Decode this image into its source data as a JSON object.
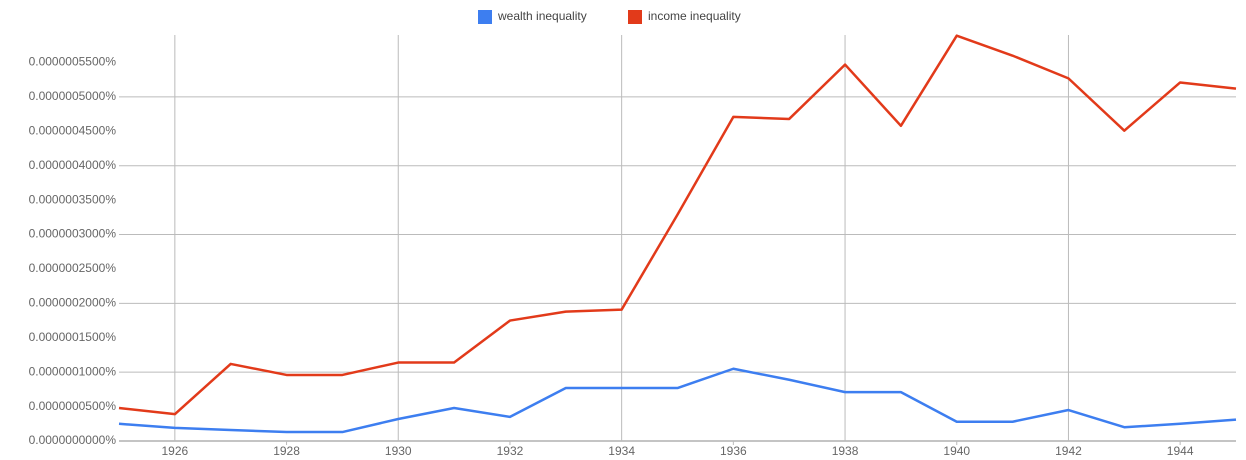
{
  "chart_data": {
    "type": "line",
    "x": [
      1925,
      1926,
      1927,
      1928,
      1929,
      1930,
      1931,
      1932,
      1933,
      1934,
      1935,
      1936,
      1937,
      1938,
      1939,
      1940,
      1941,
      1942,
      1943,
      1944,
      1945
    ],
    "series": [
      {
        "name": "wealth inequality",
        "color": "#3d7ef0",
        "values": [
          2.5e-08,
          1.9e-08,
          1.6e-08,
          1.3e-08,
          1.3e-08,
          3.2e-08,
          4.8e-08,
          3.5e-08,
          7.7e-08,
          7.7e-08,
          7.7e-08,
          1.05e-07,
          8.9e-08,
          7.1e-08,
          7.1e-08,
          2.8e-08,
          2.8e-08,
          4.5e-08,
          2e-08,
          2.5e-08,
          3.1e-08
        ]
      },
      {
        "name": "income inequality",
        "color": "#e23a1a",
        "values": [
          4.8e-08,
          3.9e-08,
          1.12e-07,
          9.6e-08,
          9.6e-08,
          1.14e-07,
          1.14e-07,
          1.75e-07,
          1.88e-07,
          1.91e-07,
          3.29e-07,
          4.71e-07,
          4.68e-07,
          5.47e-07,
          4.58e-07,
          5.89e-07,
          5.6e-07,
          5.27e-07,
          4.51e-07,
          5.21e-07,
          5.12e-07
        ]
      }
    ],
    "xlim": [
      1925,
      1945
    ],
    "xticks": [
      1926,
      1928,
      1930,
      1932,
      1934,
      1936,
      1938,
      1940,
      1942,
      1944
    ],
    "ylim": [
      0,
      5.9e-07
    ],
    "yticks": [
      {
        "value": 0,
        "label": "0.0000000000%"
      },
      {
        "value": 5e-08,
        "label": "0.0000000500%"
      },
      {
        "value": 1e-07,
        "label": "0.0000001000%"
      },
      {
        "value": 1.5e-07,
        "label": "0.0000001500%"
      },
      {
        "value": 2e-07,
        "label": "0.0000002000%"
      },
      {
        "value": 2.5e-07,
        "label": "0.0000002500%"
      },
      {
        "value": 3e-07,
        "label": "0.0000003000%"
      },
      {
        "value": 3.5e-07,
        "label": "0.0000003500%"
      },
      {
        "value": 4e-07,
        "label": "0.0000004000%"
      },
      {
        "value": 4.5e-07,
        "label": "0.0000004500%"
      },
      {
        "value": 5e-07,
        "label": "0.0000005000%"
      },
      {
        "value": 5.5e-07,
        "label": "0.0000005500%"
      }
    ],
    "grid": true,
    "legend": "top"
  }
}
